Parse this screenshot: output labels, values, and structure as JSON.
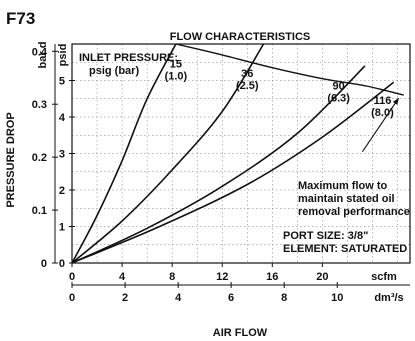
{
  "figure_id": "F73",
  "chart_data": {
    "type": "line",
    "title": "FLOW CHARACTERISTICS",
    "xlabel": "AIR FLOW",
    "ylabel": "PRESSURE DROP",
    "x_scfm": {
      "unit": "scfm",
      "min": 0,
      "max": 27,
      "ticks": [
        "0",
        "4",
        "8",
        "12",
        "16",
        "20"
      ]
    },
    "x_dm3s": {
      "unit": "dm³/s",
      "ticks": [
        "0",
        "2",
        "4",
        "6",
        "8",
        "10"
      ],
      "tick_values_scfm": [
        0,
        4.24,
        8.48,
        12.71,
        16.95,
        21.19
      ]
    },
    "y_psid": {
      "unit": "psid",
      "min": 0,
      "max": 6,
      "ticks": [
        "0",
        "1",
        "2",
        "3",
        "4",
        "5"
      ]
    },
    "y_bar": {
      "unit": "bar d",
      "ticks": [
        "0",
        "0.1",
        "0.2",
        "0.3",
        "0.4"
      ],
      "tick_values_psid": [
        0,
        1.45,
        2.9,
        4.35,
        5.8
      ]
    },
    "legend_title": "INLET PRESSURE:",
    "legend_subtitle": "psig (bar)",
    "series": [
      {
        "name": "15 (1.0)",
        "label_top": "15",
        "label_bottom": "(1.0)",
        "points": [
          [
            0,
            0
          ],
          [
            2,
            1.3
          ],
          [
            4,
            2.8
          ],
          [
            6,
            4.5
          ],
          [
            8.3,
            6
          ]
        ]
      },
      {
        "name": "36 (2.5)",
        "label_top": "36",
        "label_bottom": "(2.5)",
        "points": [
          [
            0,
            0
          ],
          [
            4,
            1.15
          ],
          [
            8,
            2.55
          ],
          [
            12,
            4.15
          ],
          [
            15.3,
            6
          ]
        ]
      },
      {
        "name": "90 (6.3)",
        "label_top": "90",
        "label_bottom": "(6.3)",
        "points": [
          [
            0,
            0
          ],
          [
            6,
            0.95
          ],
          [
            12,
            2.1
          ],
          [
            18,
            3.55
          ],
          [
            23.4,
            5.4
          ]
        ]
      },
      {
        "name": "116 (8.0)",
        "label_top": "116",
        "label_bottom": "(8.0)",
        "points": [
          [
            0,
            0
          ],
          [
            7,
            1.0
          ],
          [
            14,
            2.15
          ],
          [
            20,
            3.45
          ],
          [
            25.7,
            4.95
          ]
        ]
      }
    ],
    "max_flow_curve": {
      "label": [
        "Maximum flow to",
        "maintain stated oil",
        "removal performance"
      ],
      "points": [
        [
          8.3,
          6
        ],
        [
          12,
          5.7
        ],
        [
          16,
          5.35
        ],
        [
          20,
          5.05
        ],
        [
          23.5,
          4.85
        ],
        [
          26.5,
          4.6
        ]
      ]
    },
    "annotation": [
      "PORT SIZE: 3/8\"",
      "ELEMENT: SATURATED"
    ]
  }
}
